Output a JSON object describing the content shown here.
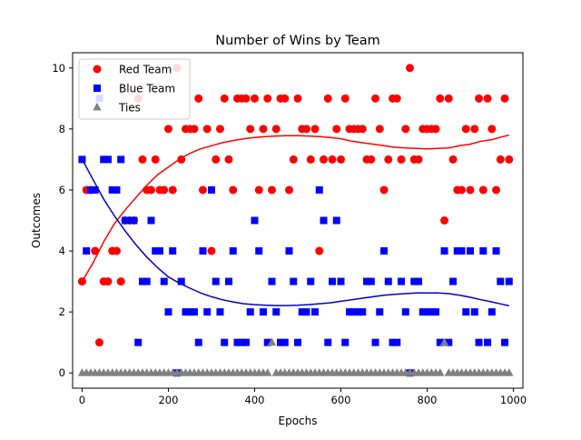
{
  "chart_data": {
    "type": "scatter",
    "title": "Number of Wins by Team",
    "xlabel": "Epochs",
    "ylabel": "Outcomes",
    "xlim": [
      -22,
      1022
    ],
    "ylim": [
      -0.5,
      10.5
    ],
    "xticks": [
      0,
      200,
      400,
      600,
      800,
      1000
    ],
    "yticks": [
      0,
      2,
      4,
      6,
      8,
      10
    ],
    "grid": false,
    "legend_position": "top-left",
    "series": [
      {
        "name": "Red Team",
        "color": "#ff0000",
        "marker": "circle",
        "x": [
          0,
          10,
          20,
          30,
          40,
          50,
          60,
          70,
          80,
          90,
          100,
          110,
          120,
          130,
          140,
          150,
          160,
          170,
          180,
          190,
          200,
          210,
          220,
          230,
          240,
          250,
          260,
          270,
          280,
          290,
          300,
          310,
          320,
          330,
          340,
          350,
          360,
          370,
          380,
          390,
          400,
          410,
          420,
          430,
          440,
          450,
          460,
          470,
          480,
          490,
          500,
          510,
          520,
          530,
          540,
          550,
          560,
          570,
          580,
          590,
          600,
          610,
          620,
          630,
          640,
          650,
          660,
          670,
          680,
          690,
          700,
          710,
          720,
          730,
          740,
          750,
          760,
          770,
          780,
          790,
          800,
          810,
          820,
          830,
          840,
          850,
          860,
          870,
          880,
          890,
          900,
          910,
          920,
          930,
          940,
          950,
          960,
          970,
          980,
          990
        ],
        "y": [
          3,
          6,
          6,
          4,
          1,
          3,
          3,
          4,
          4,
          3,
          5,
          5,
          5,
          9,
          7,
          6,
          6,
          7,
          6,
          6,
          8,
          6,
          10,
          7,
          8,
          8,
          8,
          9,
          6,
          8,
          4,
          7,
          8,
          9,
          7,
          6,
          9,
          9,
          9,
          8,
          9,
          6,
          8,
          9,
          6,
          8,
          9,
          9,
          6,
          7,
          9,
          8,
          8,
          7,
          8,
          4,
          7,
          9,
          7,
          8,
          7,
          9,
          8,
          8,
          8,
          8,
          7,
          7,
          9,
          8,
          6,
          7,
          9,
          9,
          7,
          8,
          10,
          7,
          7,
          8,
          8,
          8,
          8,
          9,
          5,
          9,
          7,
          6,
          6,
          8,
          6,
          8,
          9,
          6,
          9,
          8,
          6,
          7,
          9,
          7
        ]
      },
      {
        "name": "Blue Team",
        "color": "#0000ff",
        "marker": "square",
        "x": [
          0,
          10,
          20,
          30,
          40,
          50,
          60,
          70,
          80,
          90,
          100,
          110,
          120,
          130,
          140,
          150,
          160,
          170,
          180,
          190,
          200,
          210,
          220,
          230,
          240,
          250,
          260,
          270,
          280,
          290,
          300,
          310,
          320,
          330,
          340,
          350,
          360,
          370,
          380,
          390,
          400,
          410,
          420,
          430,
          440,
          450,
          460,
          470,
          480,
          490,
          500,
          510,
          520,
          530,
          540,
          550,
          560,
          570,
          580,
          590,
          600,
          610,
          620,
          630,
          640,
          650,
          660,
          670,
          680,
          690,
          700,
          710,
          720,
          730,
          740,
          750,
          760,
          770,
          780,
          790,
          800,
          810,
          820,
          830,
          840,
          850,
          860,
          870,
          880,
          890,
          900,
          910,
          920,
          930,
          940,
          950,
          960,
          970,
          980,
          990
        ],
        "y": [
          7,
          4,
          6,
          6,
          9,
          7,
          7,
          6,
          6,
          7,
          5,
          5,
          5,
          1,
          3,
          3,
          5,
          4,
          4,
          3,
          2,
          4,
          0,
          3,
          2,
          2,
          2,
          1,
          4,
          2,
          6,
          3,
          2,
          1,
          3,
          4,
          1,
          1,
          1,
          2,
          5,
          4,
          2,
          1,
          3,
          2,
          1,
          1,
          4,
          3,
          1,
          2,
          2,
          3,
          2,
          6,
          5,
          1,
          3,
          5,
          3,
          1,
          2,
          2,
          2,
          2,
          3,
          3,
          1,
          2,
          4,
          3,
          1,
          1,
          3,
          2,
          0,
          3,
          3,
          2,
          2,
          2,
          2,
          1,
          4,
          1,
          3,
          4,
          4,
          2,
          4,
          2,
          1,
          4,
          1,
          2,
          4,
          3,
          1,
          3
        ]
      },
      {
        "name": "Ties",
        "color": "#808080",
        "marker": "triangle",
        "x": [
          0,
          10,
          20,
          30,
          40,
          50,
          60,
          70,
          80,
          90,
          100,
          110,
          120,
          130,
          140,
          150,
          160,
          170,
          180,
          190,
          200,
          210,
          220,
          230,
          240,
          250,
          260,
          270,
          280,
          290,
          300,
          310,
          320,
          330,
          340,
          350,
          360,
          370,
          380,
          390,
          400,
          410,
          420,
          430,
          440,
          450,
          460,
          470,
          480,
          490,
          500,
          510,
          520,
          530,
          540,
          550,
          560,
          570,
          580,
          590,
          600,
          610,
          620,
          630,
          640,
          650,
          660,
          670,
          680,
          690,
          700,
          710,
          720,
          730,
          740,
          750,
          760,
          770,
          780,
          790,
          800,
          810,
          820,
          830,
          840,
          850,
          860,
          870,
          880,
          890,
          900,
          910,
          920,
          930,
          940,
          950,
          960,
          970,
          980,
          990
        ],
        "y": [
          0,
          0,
          0,
          0,
          0,
          0,
          0,
          0,
          0,
          0,
          0,
          0,
          0,
          0,
          0,
          0,
          0,
          0,
          0,
          0,
          0,
          0,
          0,
          0,
          0,
          0,
          0,
          0,
          0,
          0,
          0,
          0,
          0,
          0,
          0,
          0,
          0,
          0,
          0,
          0,
          0,
          0,
          0,
          0,
          1,
          0,
          0,
          0,
          0,
          0,
          0,
          0,
          0,
          0,
          0,
          0,
          0,
          0,
          0,
          0,
          0,
          0,
          0,
          0,
          0,
          0,
          0,
          0,
          0,
          0,
          0,
          0,
          0,
          0,
          0,
          0,
          0,
          0,
          0,
          0,
          0,
          0,
          0,
          0,
          1,
          0,
          0,
          0,
          0,
          0,
          0,
          0,
          0,
          0,
          0,
          0,
          0,
          0,
          0,
          0
        ]
      }
    ],
    "trendlines": [
      {
        "color": "#ff0000",
        "x": [
          0,
          25,
          50,
          75,
          100,
          125,
          150,
          175,
          200,
          225,
          250,
          275,
          300,
          325,
          350,
          375,
          400,
          425,
          450,
          475,
          500,
          525,
          550,
          575,
          600,
          625,
          650,
          675,
          700,
          725,
          750,
          775,
          800,
          825,
          850,
          875,
          900,
          925,
          950,
          975,
          990
        ],
        "y": [
          3.0,
          3.6,
          4.3,
          4.9,
          5.35,
          5.75,
          6.15,
          6.5,
          6.75,
          7.0,
          7.2,
          7.35,
          7.45,
          7.55,
          7.62,
          7.68,
          7.72,
          7.75,
          7.77,
          7.78,
          7.78,
          7.77,
          7.75,
          7.72,
          7.68,
          7.6,
          7.55,
          7.5,
          7.45,
          7.4,
          7.38,
          7.36,
          7.35,
          7.36,
          7.38,
          7.45,
          7.5,
          7.6,
          7.65,
          7.75,
          7.8
        ]
      },
      {
        "color": "#0000cc",
        "x": [
          0,
          25,
          50,
          75,
          100,
          125,
          150,
          175,
          200,
          225,
          250,
          275,
          300,
          325,
          350,
          375,
          400,
          425,
          450,
          475,
          500,
          525,
          550,
          575,
          600,
          625,
          650,
          675,
          700,
          725,
          750,
          775,
          800,
          825,
          850,
          875,
          900,
          925,
          950,
          975,
          990
        ],
        "y": [
          7.0,
          6.35,
          5.7,
          5.15,
          4.65,
          4.2,
          3.8,
          3.45,
          3.15,
          2.95,
          2.78,
          2.62,
          2.5,
          2.4,
          2.33,
          2.27,
          2.24,
          2.22,
          2.21,
          2.21,
          2.22,
          2.24,
          2.27,
          2.3,
          2.35,
          2.4,
          2.45,
          2.5,
          2.55,
          2.58,
          2.6,
          2.62,
          2.62,
          2.62,
          2.6,
          2.55,
          2.48,
          2.4,
          2.33,
          2.25,
          2.2
        ]
      }
    ]
  }
}
